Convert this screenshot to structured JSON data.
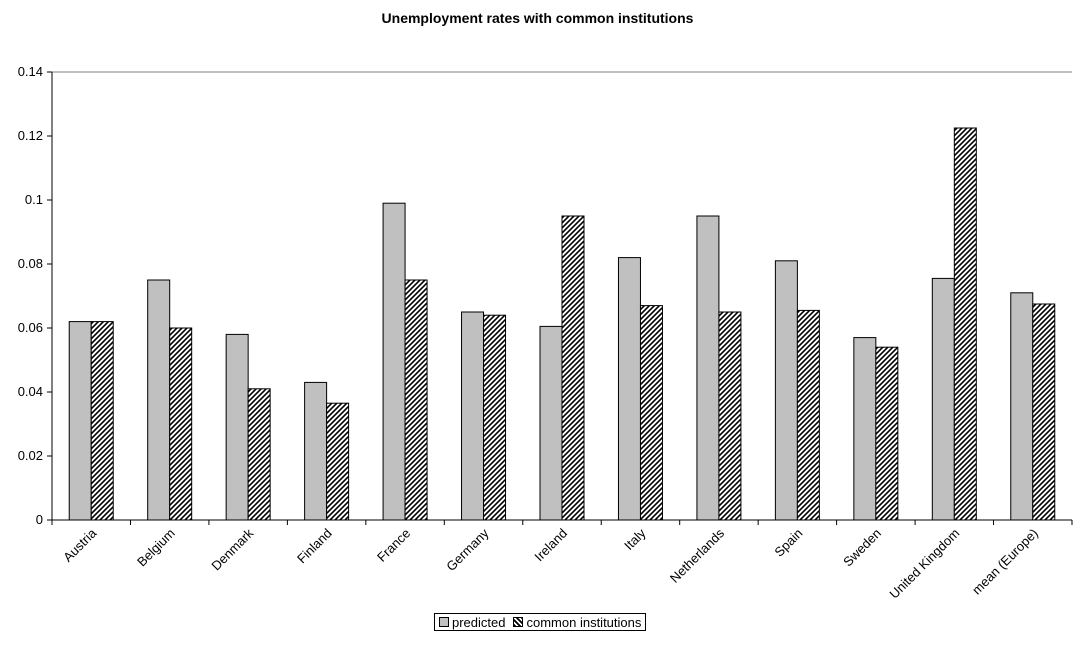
{
  "chart_data": {
    "type": "bar",
    "title": "Unemployment rates with common institutions",
    "xlabel": "",
    "ylabel": "",
    "categories": [
      "Austria",
      "Belgium",
      "Denmark",
      "Finland",
      "France",
      "Germany",
      "Ireland",
      "Italy",
      "Netherlands",
      "Spain",
      "Sweden",
      "United Kingdom",
      "mean (Europe)"
    ],
    "series": [
      {
        "name": "predicted",
        "values": [
          0.062,
          0.075,
          0.058,
          0.043,
          0.099,
          0.065,
          0.0605,
          0.082,
          0.095,
          0.081,
          0.057,
          0.0755,
          0.071
        ],
        "color": "#c0c0c0"
      },
      {
        "name": "common institutions",
        "values": [
          0.062,
          0.06,
          0.041,
          0.0365,
          0.075,
          0.064,
          0.095,
          0.067,
          0.065,
          0.0655,
          0.054,
          0.1225,
          0.0675
        ],
        "color": "#000000"
      }
    ],
    "ylim": [
      0,
      0.14
    ],
    "yticks": [
      "0",
      "0.02",
      "0.04",
      "0.06",
      "0.08",
      "0.1",
      "0.12",
      "0.14"
    ],
    "grid": false,
    "legend_position": "bottom"
  }
}
